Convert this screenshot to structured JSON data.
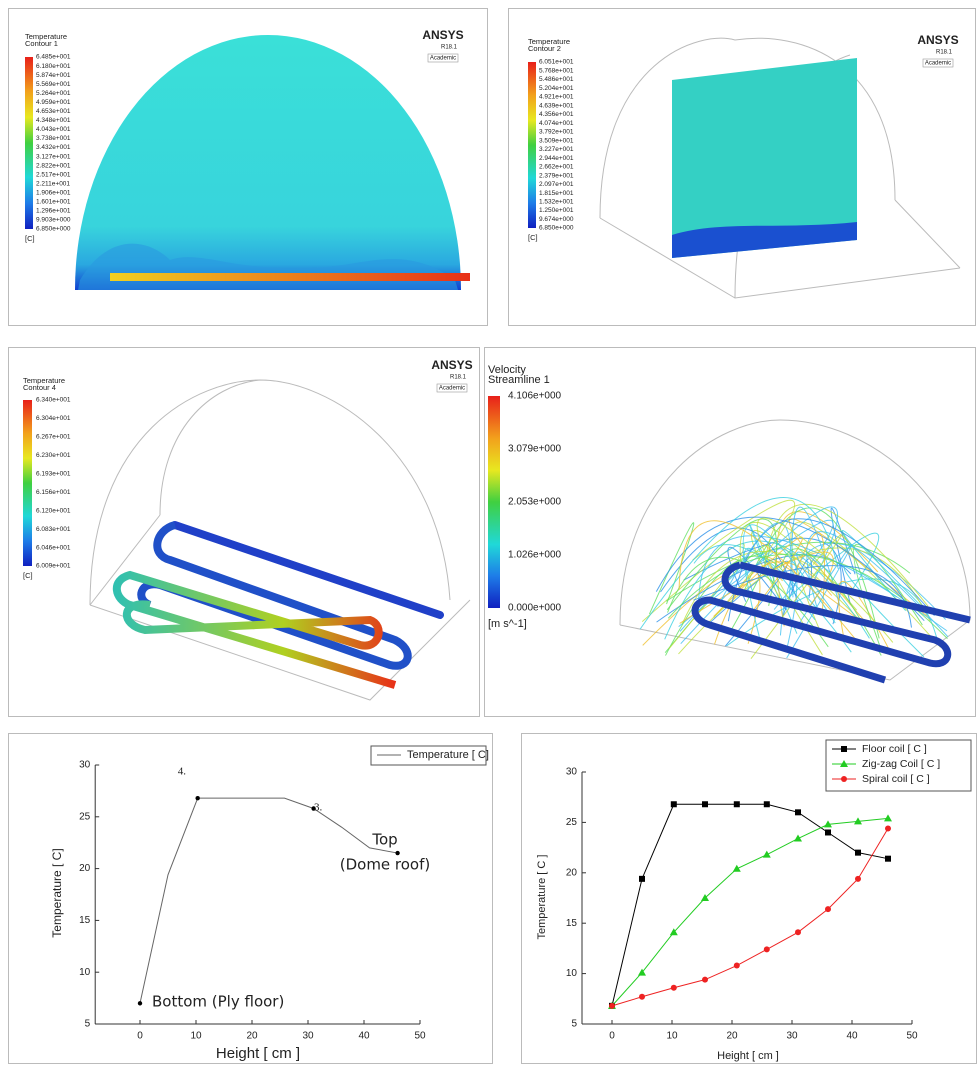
{
  "panels": [
    {
      "logo": "ANSYS",
      "version": "R18.1",
      "edition": "Academic",
      "legend_title": "Temperature",
      "legend_subtitle": "Contour 1",
      "legend_labels": [
        "6.485e+001",
        "6.180e+001",
        "5.874e+001",
        "5.569e+001",
        "5.264e+001",
        "4.959e+001",
        "4.653e+001",
        "4.348e+001",
        "4.043e+001",
        "3.738e+001",
        "3.432e+001",
        "3.127e+001",
        "2.822e+001",
        "2.517e+001",
        "2.211e+001",
        "1.906e+001",
        "1.601e+001",
        "1.296e+001",
        "9.903e+000",
        "6.850e+000"
      ],
      "unit": "[C]"
    },
    {
      "logo": "ANSYS",
      "version": "R18.1",
      "edition": "Academic",
      "legend_title": "Temperature",
      "legend_subtitle": "Contour 2",
      "legend_labels": [
        "6.051e+001",
        "5.768e+001",
        "5.486e+001",
        "5.204e+001",
        "4.921e+001",
        "4.639e+001",
        "4.356e+001",
        "4.074e+001",
        "3.792e+001",
        "3.509e+001",
        "3.227e+001",
        "2.944e+001",
        "2.662e+001",
        "2.379e+001",
        "2.097e+001",
        "1.815e+001",
        "1.532e+001",
        "1.250e+001",
        "9.674e+000",
        "6.850e+000"
      ],
      "unit": "[C]"
    },
    {
      "logo": "ANSYS",
      "version": "R18.1",
      "edition": "Academic",
      "legend_title": "Temperature",
      "legend_subtitle": "Contour 4",
      "legend_labels": [
        "6.340e+001",
        "6.304e+001",
        "6.267e+001",
        "6.230e+001",
        "6.193e+001",
        "6.156e+001",
        "6.120e+001",
        "6.083e+001",
        "6.046e+001",
        "6.009e+001"
      ],
      "unit": "[C]"
    },
    {
      "legend_title": "Velocity",
      "legend_subtitle": "Streamline 1",
      "legend_labels": [
        "4.106e+000",
        "3.079e+000",
        "2.053e+000",
        "1.026e+000",
        "0.000e+000"
      ],
      "unit": "[m s^-1]"
    }
  ],
  "chart_data": [
    {
      "type": "line",
      "x_label": "Height [ cm ]",
      "y_label": "Temperature [ C]",
      "x": [
        0,
        5,
        10.3,
        15.5,
        20.8,
        25.8,
        31,
        36,
        41,
        46
      ],
      "series": [
        {
          "name": "Temperature [ C]",
          "color": "#666666",
          "values": [
            7,
            19.4,
            26.8,
            26.8,
            26.8,
            26.8,
            25.8,
            24,
            22,
            21.5
          ]
        }
      ],
      "annotations": [
        "4.",
        "3.",
        "Top",
        "(Dome roof)",
        "Bottom (Ply floor)"
      ],
      "xlim": [
        -8,
        50
      ],
      "xticks": [
        0,
        10,
        20,
        30,
        40,
        50
      ],
      "ylim": [
        5,
        30
      ],
      "yticks": [
        5,
        10,
        15,
        20,
        25,
        30
      ]
    },
    {
      "type": "line",
      "x_label": "Height [ cm ]",
      "y_label": "Temperature [ C ]",
      "x": [
        0,
        5,
        10.3,
        15.5,
        20.8,
        25.8,
        31,
        36,
        41,
        46
      ],
      "series": [
        {
          "name": "Floor coil [ C ]",
          "color": "#000000",
          "marker": "square",
          "values": [
            6.8,
            19.4,
            26.8,
            26.8,
            26.8,
            26.8,
            26,
            24,
            22,
            21.4
          ]
        },
        {
          "name": "Zig-zag Coil [ C ]",
          "color": "#22cc22",
          "marker": "triangle",
          "values": [
            6.8,
            10.1,
            14.1,
            17.5,
            20.4,
            21.8,
            23.4,
            24.8,
            25.1,
            25.4
          ]
        },
        {
          "name": "Spiral coil [ C ]",
          "color": "#ee2222",
          "marker": "circle",
          "values": [
            6.8,
            7.7,
            8.6,
            9.4,
            10.8,
            12.4,
            14.1,
            16.4,
            19.4,
            24.4
          ]
        }
      ],
      "xlim": [
        -5,
        50
      ],
      "xticks": [
        0,
        10,
        20,
        30,
        40,
        50
      ],
      "ylim": [
        5,
        30
      ],
      "yticks": [
        5,
        10,
        15,
        20,
        25,
        30
      ]
    }
  ]
}
